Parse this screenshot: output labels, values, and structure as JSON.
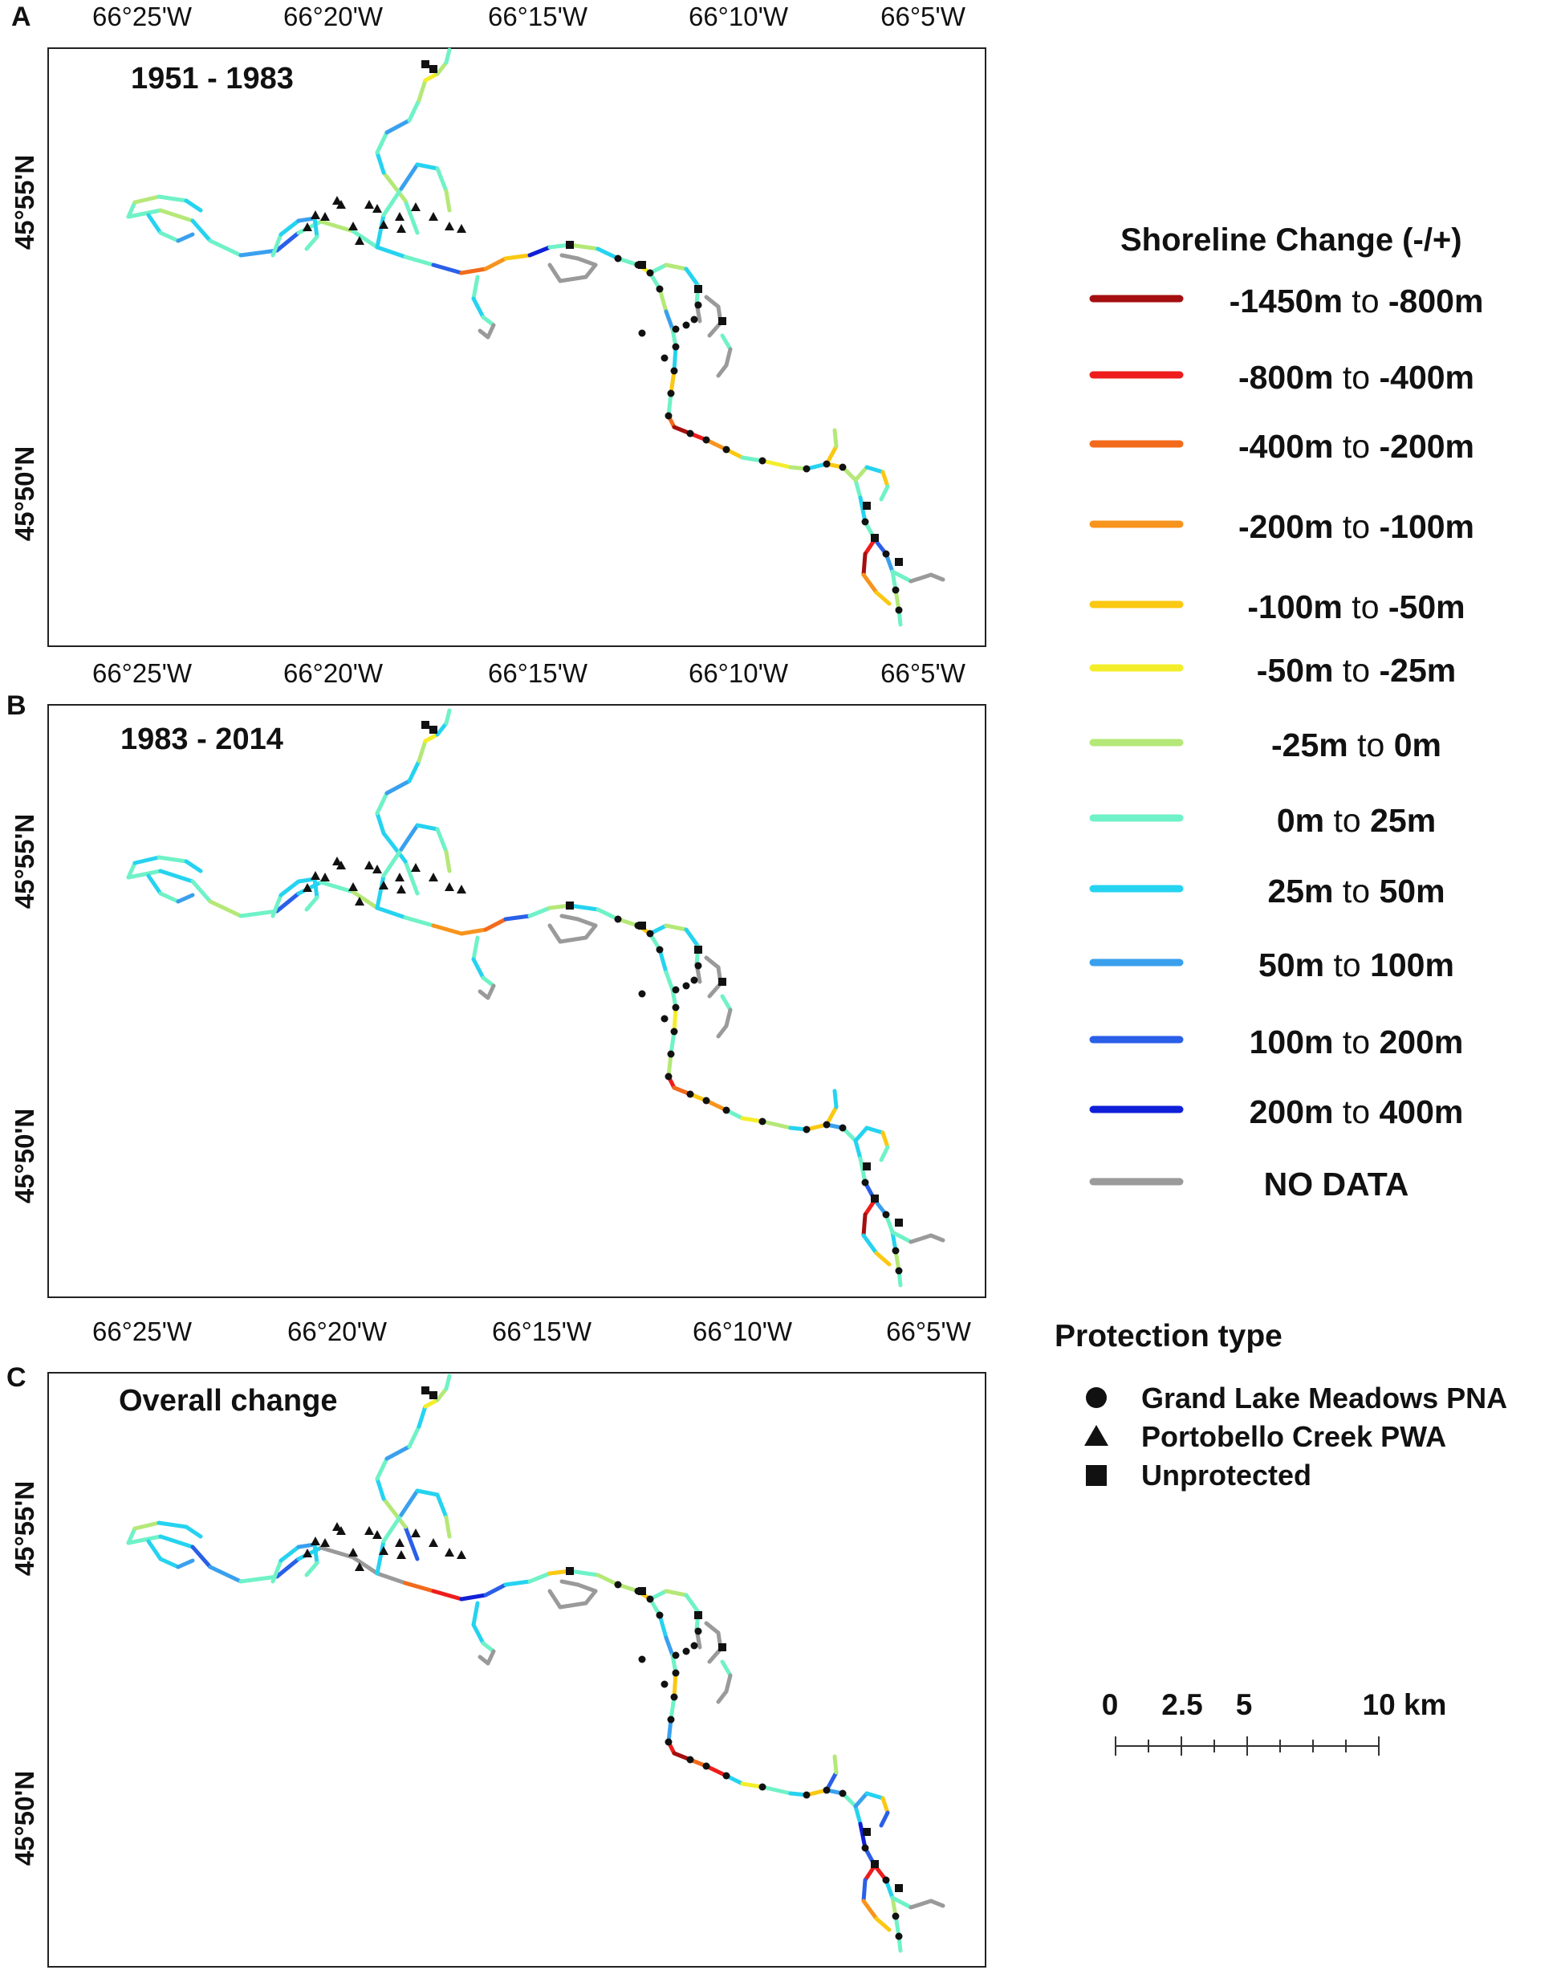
{
  "panels": [
    {
      "letter": "A",
      "period": "1951 - 1983",
      "lon_top": [
        "66°25'W",
        "66°20'W",
        "66°15'W",
        "66°10'W",
        "66°5'W"
      ],
      "lon_bottom": [
        "66°25'W",
        "66°20'W",
        "66°15'W",
        "66°10'W",
        "66°5'W"
      ],
      "lat": [
        "45°55'N",
        "45°50'N"
      ]
    },
    {
      "letter": "B",
      "period": "1983 - 2014",
      "lon_bottom": [
        "66°25'W",
        "66°20'W",
        "66°15'W",
        "66°10'W",
        "66°5'W"
      ],
      "lat": [
        "45°55'N",
        "45°50'N"
      ]
    },
    {
      "letter": "C",
      "period": "Overall change",
      "lat": [
        "45°55'N",
        "45°50'N"
      ]
    }
  ],
  "legend": {
    "title": "Shoreline Change (-/+)",
    "to_word": "to",
    "items": [
      {
        "from": "-1450m",
        "to": "-800m",
        "color": "#a50f0f"
      },
      {
        "from": "-800m",
        "to": "-400m",
        "color": "#ee1c1c"
      },
      {
        "from": "-400m",
        "to": "-200m",
        "color": "#f26a1b"
      },
      {
        "from": "-200m",
        "to": "-100m",
        "color": "#f7941d"
      },
      {
        "from": "-100m",
        "to": "-50m",
        "color": "#fbc812"
      },
      {
        "from": "-50m",
        "to": "-25m",
        "color": "#f4ee2a"
      },
      {
        "from": "-25m",
        "to": "0m",
        "color": "#b5e878"
      },
      {
        "from": "0m",
        "to": "25m",
        "color": "#6ff2c7"
      },
      {
        "from": "25m",
        "to": "50m",
        "color": "#25d3f0"
      },
      {
        "from": "50m",
        "to": "100m",
        "color": "#3aa0ee"
      },
      {
        "from": "100m",
        "to": "200m",
        "color": "#2a5fe8"
      },
      {
        "from": "200m",
        "to": "400m",
        "color": "#1020d8"
      },
      {
        "label": "NO DATA",
        "color": "#9a9a9a"
      }
    ]
  },
  "protection": {
    "title": "Protection type",
    "items": [
      {
        "symbol": "circle",
        "label": "Grand Lake Meadows PNA"
      },
      {
        "symbol": "triangle",
        "label": "Portobello Creek PWA"
      },
      {
        "symbol": "square",
        "label": "Unprotected"
      }
    ]
  },
  "scale_bar": {
    "labels": [
      "0",
      "2.5",
      "5",
      "10 km"
    ],
    "km": [
      0,
      2.5,
      5,
      10
    ]
  }
}
